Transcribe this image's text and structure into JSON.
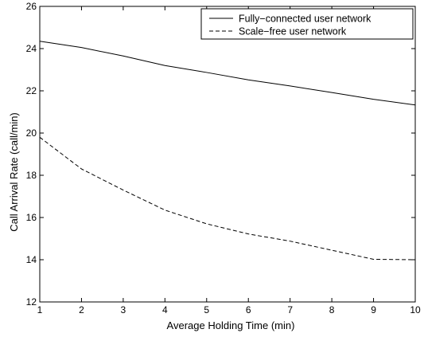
{
  "chart_data": {
    "type": "line",
    "title": "",
    "xlabel": "Average Holding Time (min)",
    "ylabel": "Call Arrival Rate (call/min)",
    "xlim": [
      1,
      10
    ],
    "ylim": [
      12,
      26
    ],
    "xticks": [
      1,
      2,
      3,
      4,
      5,
      6,
      7,
      8,
      9,
      10
    ],
    "yticks": [
      12,
      14,
      16,
      18,
      20,
      22,
      24,
      26
    ],
    "grid": false,
    "legend_position": "top-right",
    "x": [
      1,
      2,
      3,
      4,
      5,
      6,
      7,
      8,
      9,
      10
    ],
    "series": [
      {
        "name": "Fully−connected user network",
        "line_style": "solid",
        "color": "#000000",
        "values": [
          24.35,
          24.05,
          23.65,
          23.2,
          22.87,
          22.52,
          22.23,
          21.92,
          21.6,
          21.33
        ]
      },
      {
        "name": "Scale−free user network",
        "line_style": "dashed",
        "color": "#000000",
        "values": [
          19.8,
          18.3,
          17.3,
          16.35,
          15.7,
          15.22,
          14.88,
          14.45,
          14.02,
          14.0
        ]
      }
    ]
  }
}
